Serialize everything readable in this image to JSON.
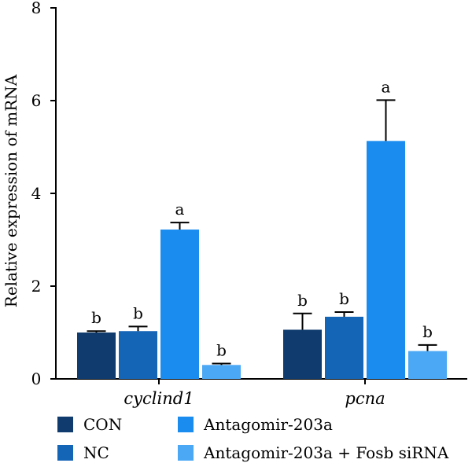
{
  "chart_data": {
    "type": "bar",
    "ylabel": "Relative expression of mRNA",
    "xlabel": "",
    "ylim": [
      0,
      8
    ],
    "yticks": [
      0,
      2,
      4,
      6,
      8
    ],
    "categories": [
      "cyclind1",
      "pcna"
    ],
    "series": [
      {
        "name": "CON",
        "color": "#0f3b6e",
        "values": [
          1.0,
          1.06
        ],
        "errors": [
          0.03,
          0.35
        ],
        "labels": [
          "b",
          "b"
        ]
      },
      {
        "name": "NC",
        "color": "#1565b6",
        "values": [
          1.03,
          1.34
        ],
        "errors": [
          0.1,
          0.1
        ],
        "labels": [
          "b",
          "b"
        ]
      },
      {
        "name": "Antagomir-203a",
        "color": "#1a8cf0",
        "values": [
          3.22,
          5.13
        ],
        "errors": [
          0.15,
          0.88
        ],
        "labels": [
          "a",
          "a"
        ]
      },
      {
        "name": "Antagomir-203a + Fosb siRNA",
        "color": "#4aa8f5",
        "values": [
          0.3,
          0.6
        ],
        "errors": [
          0.03,
          0.13
        ],
        "labels": [
          "b",
          "b"
        ]
      }
    ],
    "legend_placement": "bottom"
  }
}
